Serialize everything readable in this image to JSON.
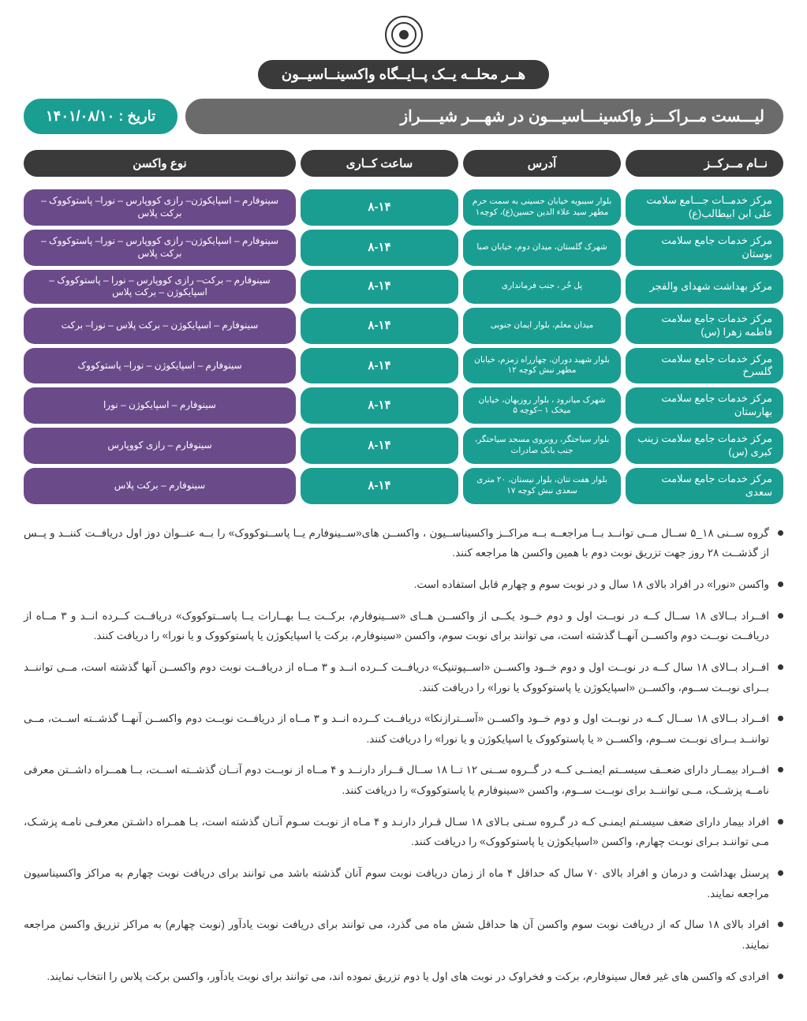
{
  "colors": {
    "dark_pill": "#3a3a3a",
    "gray_pill": "#6b6b6b",
    "teal": "#1a9e92",
    "purple": "#6b4a8a",
    "page_bg": "#ffffff",
    "text": "#333333"
  },
  "header": {
    "slogan": "هــر محلــه یــک پــایــگاه واکسینــاسیــون",
    "list_title": "لیـــست مــراکـــز واکسینـــاسیـــون در شهـــر شیــــراز",
    "date_label": "تاریخ : ۱۴۰۱/۰۸/۱۰"
  },
  "columns": {
    "name": "نــام مــرکــز",
    "address": "آدرس",
    "hours": "ساعت کــاری",
    "vaccine": "نوع واکسن"
  },
  "rows": [
    {
      "name": "مرکز خدمــات جـــامع سلامت علی ابن ابیطالب(ع)",
      "address": "بلوار سیبویه خیابان حسینی به سمت حرم مطهر سید علاء الدین حسین(ع)، کوچه۱",
      "hours": "۸-۱۴",
      "vaccine": "سینوفارم – اسپایکوژن– رازی کووپارس – نورا– پاستوکووک – برکت پلاس"
    },
    {
      "name": "مرکز خدمات جامع سلامت بوستان",
      "address": "شهرک گلستان،  میدان دوم، خیابان صبا",
      "hours": "۸-۱۴",
      "vaccine": "سینوفارم – اسپایکوژن– رازی کووپارس – نورا– پاستوکووک – برکت پلاس"
    },
    {
      "name": "مرکز  بهداشت شهدای  والفجر",
      "address": "پل خُر ، جنب فرمانداری",
      "hours": "۸-۱۴",
      "vaccine": "سینوفارم – برکت– رازی کووپارس – نورا – پاستوکووک – اسپایکوژن – برکت پلاس"
    },
    {
      "name": "مرکز خدمات جامع سلامت فاطمه زهرا (س)",
      "address": "میدان معلم،  بلوار ایمان جنوبی",
      "hours": "۸-۱۴",
      "vaccine": "سینوفارم – اسپایکوژن –  برکت پلاس –  نورا– برکت"
    },
    {
      "name": "مرکز خدمات جامع سلامت گلسرخ",
      "address": "بلوار شهید دوران، چهارراه زمزم، خیابان مطهر نبش کوچه ۱۲",
      "hours": "۸-۱۴",
      "vaccine": "سینوفارم –  اسپایکوژن – نورا– پاستوکووک"
    },
    {
      "name": "مرکز خدمات جامع سلامت بهارستان",
      "address": "شهرک میانرود ، بلوار روزبهان، خیابان میخک ۱ –کوچه ۵",
      "hours": "۸-۱۴",
      "vaccine": "سینوفارم – اسپایکوژن – نورا"
    },
    {
      "name": "مرکز خدمات جامع سلامت زینب کبری (س)",
      "address": "بلوار سیاحتگر، روبروی مسجد سیاحتگر، جنب بانک صادرات",
      "hours": "۸-۱۴",
      "vaccine": "سینوفارم –  رازی کووپارس"
    },
    {
      "name": "مرکز خدمات جامع سلامت سعدی",
      "address": "بلوار هفت تنان، بلوار نیستان، ۲۰ متری سعدی نبش کوچه ۱۷",
      "hours": "۸-۱۴",
      "vaccine": "سینوفارم –  برکت پلاس"
    }
  ],
  "notes": [
    "گروه ســنی ۱۸_۵ ســال مــی توانــد  بــا مراجعــه  بــه مراکــز واکسیناســیون ،  واکســن های«ســینوفارم یــا پاســتوکووک»  را بــه عنــوان دوز اول دریافــت کننــد و پــس از گذشــت  ۲۸ روز جهت تزریق نوبت دوم با همین واکسن ها مراجعه کنند.",
    "واکسن «نورا»  در افراد بالای ۱۸ سال و در نوبت سوم و چهارم قابل استفاده است.",
    "افــراد بــالای ۱۸ ســال کــه در نوبــت اول و دوم خــود یکــی از واکســن هــای  «ســینوفارم، برکــت یــا بهــارات یــا پاســتوکووک» دریافــت کــرده انــد و ۳ مــاه از دریافــت نوبــت دوم واکســن آنهــا گذشته است، می توانند برای نوبت سوم، واکسن «سینوفارم، برکت یا اسپایکوژن یا  پاستوکووک و یا نورا» را دریافت کنند.",
    "افــراد بــالای ۱۸ سال کــه در نوبــت اول و دوم خــود واکســن «اســپوتنیک» دریافــت کــرده انــد و ۳ مــاه از دریافــت نوبت دوم واکســن آنها گذشته است، مــی تواننــد بــرای نوبــت ســوم،  واکســن «اسپایکوژن یا  پاستوکووک یا نورا»  را دریافت کنند.",
    "افــراد بــالای ۱۸ ســال کــه در نوبــت اول و دوم خــود واکســن «آســترازنکا» دریافــت کــرده انــد و ۳ مــاه از دریافــت نوبــت دوم واکســن آنهــا گذشــته اســت، مــی تواننــد  بــرای نوبــت ســوم، واکســن « یا  پاستوکووک یا اسپایکوژن و یا نورا» را دریافت کنند.",
    "افــراد بیمــار دارای ضعــف سیســتم ایمنــی کــه در گــروه ســنی ۱۲ تــا ۱۸ ســال قــرار دارنــد و ۴ مــاه از نوبــت دوم آنــان گذشــته اســت، بــا همــراه داشــتن معرفی نامــه پزشــک، مــی تواننــد برای نوبــت ســوم، واکسن «سینوفارم یا  پاستوکووک» را دریافت کنند.",
    "افراد بیمار دارای ضعف سیسـتم ایمنـی کـه در گـروه سـنی بـالای ۱۸ سـال قـرار دارنـد و ۴ مـاه از نوبـت سـوم آنـان گذشته است، بـا همـراه داشـتن معرفـی نامـه پزشـک، مـی تواننـد بـرای نوبـت چهارم، واکسن «اسپایکوژن یا  پاستوکووک»  را دریافت کنند.",
    "پرسنل بهداشت و درمان و افراد بالای ۷۰ سال که حداقل ۴ ماه از زمان دریافت نوبت سوم آنان گذشته باشد می توانند برای دریافت نوبت چهارم به مراکز واکسیناسیون مراجعه نمایند.",
    "افراد بالای ۱۸ سال که از دریافت نوبت سوم واکسن آن ها حداقل شش ماه می گذرد، می توانند برای دریافت نوبت یادآور (نوبت چهارم) به مراکز تزریق واکسن مراجعه نمایند.",
    "افرادی که واکسن های غیر فعال  سینوفارم، برکت و فخراوک در نوبت های اول یا دوم تزریق نموده اند، می توانند برای نوبت یادآور، واکسن برکت پلاس را انتخاب نمایند."
  ]
}
